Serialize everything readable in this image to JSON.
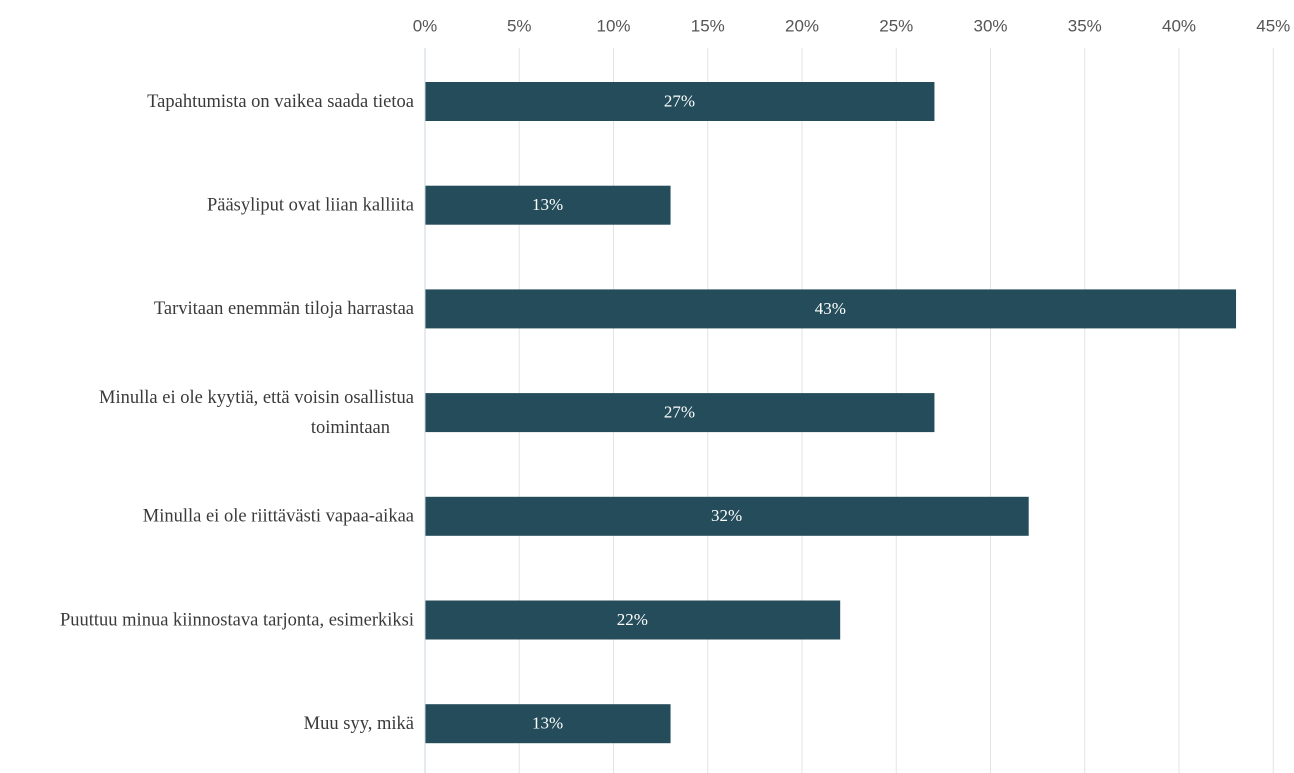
{
  "chart_data": {
    "type": "bar",
    "orientation": "horizontal",
    "categories": [
      [
        "Tapahtumista on vaikea saada tietoa"
      ],
      [
        "Pääsyliput ovat liian kalliita"
      ],
      [
        "Tarvitaan enemmän tiloja harrastaa"
      ],
      [
        "Minulla ei ole kyytiä, että voisin osallistua",
        "toimintaan"
      ],
      [
        "Minulla ei ole riittävästi vapaa-aikaa"
      ],
      [
        "Puuttuu minua kiinnostava tarjonta, esimerkiksi"
      ],
      [
        "Muu syy, mikä"
      ]
    ],
    "values": [
      27,
      13,
      43,
      27,
      32,
      22,
      13
    ],
    "data_labels": [
      "27%",
      "13%",
      "43%",
      "27%",
      "32%",
      "22%",
      "13%"
    ],
    "x_ticks": [
      "0%",
      "5%",
      "10%",
      "15%",
      "20%",
      "25%",
      "30%",
      "35%",
      "40%",
      "45%"
    ],
    "xlim": [
      0,
      45
    ],
    "x_axis_position": "top",
    "grid": true,
    "bar_color": "#244c5a",
    "grid_color": "#e3e3e3",
    "axis_color": "#c9d6de"
  }
}
